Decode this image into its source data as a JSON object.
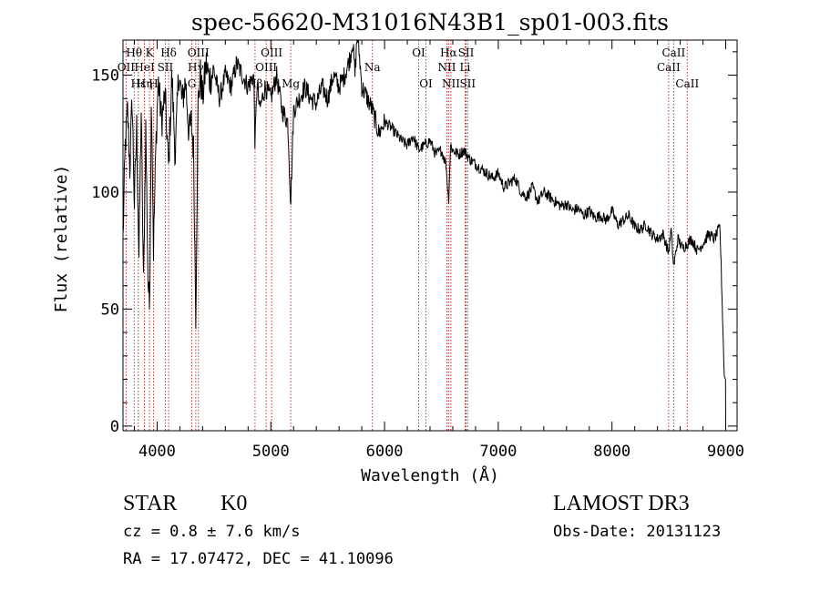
{
  "chart_data": {
    "type": "line",
    "title": "spec-56620-M31016N43B1_sp01-003.fits",
    "xlabel": "Wavelength (Å)",
    "ylabel": "Flux (relative)",
    "xlim": [
      3700,
      9100
    ],
    "ylim": [
      -2,
      165
    ],
    "x_ticks": [
      4000,
      5000,
      6000,
      7000,
      8000,
      9000
    ],
    "y_ticks": [
      0,
      50,
      100,
      150
    ],
    "x_tick_labels": [
      "4000",
      "5000",
      "6000",
      "7000",
      "8000",
      "9000"
    ],
    "y_tick_labels": [
      "0",
      "50",
      "100",
      "150"
    ],
    "line_color": "#000000",
    "marker_color": "#b22222",
    "spectrum": {
      "x": [
        3700,
        3720,
        3740,
        3760,
        3780,
        3800,
        3820,
        3840,
        3860,
        3880,
        3900,
        3920,
        3933,
        3950,
        3968,
        3990,
        4010,
        4040,
        4070,
        4101,
        4130,
        4160,
        4190,
        4220,
        4250,
        4280,
        4300,
        4320,
        4340,
        4360,
        4380,
        4400,
        4430,
        4460,
        4500,
        4550,
        4600,
        4650,
        4700,
        4750,
        4800,
        4850,
        4861,
        4880,
        4900,
        4950,
        5000,
        5050,
        5100,
        5150,
        5175,
        5200,
        5250,
        5300,
        5350,
        5400,
        5450,
        5500,
        5550,
        5600,
        5650,
        5700,
        5720,
        5740,
        5760,
        5780,
        5800,
        5850,
        5893,
        5950,
        6000,
        6050,
        6100,
        6150,
        6200,
        6250,
        6300,
        6350,
        6400,
        6450,
        6500,
        6540,
        6563,
        6580,
        6600,
        6650,
        6700,
        6750,
        6800,
        6850,
        6900,
        6950,
        7000,
        7050,
        7100,
        7150,
        7200,
        7250,
        7300,
        7350,
        7400,
        7450,
        7500,
        7550,
        7600,
        7650,
        7700,
        7750,
        7800,
        7850,
        7900,
        7950,
        8000,
        8050,
        8100,
        8150,
        8200,
        8250,
        8300,
        8350,
        8400,
        8450,
        8498,
        8520,
        8542,
        8580,
        8620,
        8662,
        8700,
        8750,
        8800,
        8850,
        8900,
        8950,
        9000
      ],
      "y": [
        80,
        120,
        135,
        110,
        140,
        95,
        128,
        72,
        135,
        60,
        128,
        62,
        50,
        145,
        75,
        120,
        148,
        130,
        142,
        110,
        150,
        115,
        152,
        138,
        148,
        125,
        130,
        118,
        48,
        138,
        150,
        140,
        155,
        148,
        152,
        140,
        150,
        145,
        155,
        150,
        145,
        150,
        120,
        148,
        135,
        145,
        140,
        150,
        135,
        130,
        95,
        135,
        140,
        145,
        140,
        138,
        145,
        140,
        150,
        145,
        150,
        158,
        165,
        150,
        168,
        158,
        145,
        140,
        135,
        125,
        130,
        128,
        125,
        122,
        120,
        124,
        118,
        120,
        122,
        116,
        118,
        112,
        96,
        120,
        118,
        116,
        118,
        114,
        112,
        110,
        108,
        106,
        108,
        102,
        104,
        106,
        100,
        98,
        102,
        96,
        100,
        98,
        96,
        94,
        95,
        92,
        93,
        90,
        92,
        89,
        90,
        88,
        92,
        86,
        88,
        90,
        85,
        84,
        86,
        82,
        80,
        82,
        74,
        84,
        68,
        80,
        76,
        78,
        80,
        75,
        78,
        82,
        80,
        85,
        0
      ]
    },
    "lines": [
      {
        "label": "Hθ",
        "x": 3798,
        "row": 0,
        "side": "center"
      },
      {
        "label": "OII",
        "x": 3727,
        "row": 1,
        "side": "center"
      },
      {
        "label": "Hε",
        "x": 3835,
        "row": 2,
        "side": "center"
      },
      {
        "label": "HeI",
        "x": 3889,
        "row": 1,
        "side": "center"
      },
      {
        "label": "Hη",
        "x": 3889,
        "row": 2,
        "side": "center"
      },
      {
        "label": "K",
        "x": 3933,
        "row": 0,
        "side": "center"
      },
      {
        "label": "H",
        "x": 3968,
        "row": 2,
        "side": "center"
      },
      {
        "label": "SII",
        "x": 4072,
        "row": 1,
        "side": "center"
      },
      {
        "label": "Hδ",
        "x": 4101,
        "row": 0,
        "side": "center"
      },
      {
        "label": "G",
        "x": 4305,
        "row": 2,
        "side": "center"
      },
      {
        "label": "Hγ",
        "x": 4340,
        "row": 1,
        "side": "center"
      },
      {
        "label": "OIII",
        "x": 4363,
        "row": 0,
        "side": "center"
      },
      {
        "label": "Hβ",
        "x": 4861,
        "row": 2,
        "side": "center"
      },
      {
        "label": "OIII",
        "x": 4959,
        "row": 1,
        "side": "center"
      },
      {
        "label": "OIII",
        "x": 5007,
        "row": 0,
        "side": "center"
      },
      {
        "label": "Mg",
        "x": 5175,
        "row": 2,
        "side": "center"
      },
      {
        "label": "Na",
        "x": 5893,
        "row": 1,
        "side": "center"
      },
      {
        "label": "OI",
        "x": 6300,
        "row": 0,
        "side": "center"
      },
      {
        "label": "OI",
        "x": 6364,
        "row": 2,
        "side": "center"
      },
      {
        "label": "NII",
        "x": 6548,
        "row": 1,
        "side": "center"
      },
      {
        "label": "Hα",
        "x": 6563,
        "row": 0,
        "side": "center"
      },
      {
        "label": "NII",
        "x": 6584,
        "row": 2,
        "side": "center"
      },
      {
        "label": "Li",
        "x": 6708,
        "row": 1,
        "side": "center"
      },
      {
        "label": "SII",
        "x": 6717,
        "row": 0,
        "side": "center"
      },
      {
        "label": "SII",
        "x": 6731,
        "row": 2,
        "side": "center"
      },
      {
        "label": "CaII",
        "x": 8498,
        "row": 1,
        "side": "center"
      },
      {
        "label": "CaII",
        "x": 8542,
        "row": 0,
        "side": "center"
      },
      {
        "label": "CaII",
        "x": 8662,
        "row": 2,
        "side": "center"
      }
    ]
  },
  "info": {
    "class": "STAR",
    "subclass": "K0",
    "cz": "cz = 0.8 ± 7.6 km/s",
    "coords": "RA =  17.07472, DEC =  41.10096",
    "survey": "LAMOST DR3",
    "obs_date": "Obs-Date: 20131123"
  }
}
